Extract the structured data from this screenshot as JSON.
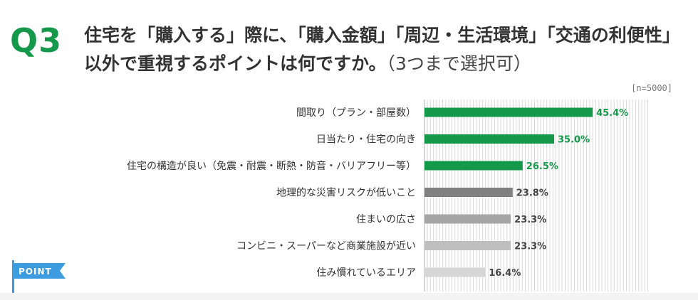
{
  "header": {
    "q_label": "Q3",
    "title_main": "住宅を「購入する」際に、「購入金額」「周辺・生活環境」「交通の利便性」以外で重視するポイントは何ですか。",
    "title_sub": "（3つまで選択可）",
    "sample_note": "[n=5000]"
  },
  "badge": {
    "label": "POINT",
    "color": "#3d9be0"
  },
  "colors": {
    "green": "#14984a",
    "gray_dark": "#808080",
    "gray_mid": "#a6a6a6",
    "gray_light": "#bfbfbf",
    "gray_lighter": "#d6d6d6",
    "grid": "#d9d9d9"
  },
  "chart_data": {
    "type": "bar",
    "orientation": "horizontal",
    "unit": "%",
    "xlim": [
      0,
      50
    ],
    "categories": [
      "間取り（プラン・部屋数）",
      "日当たり・住宅の向き",
      "住宅の構造が良い（免震・耐震・断熱・防音・バリアフリー等）",
      "地理的な災害リスクが低いこと",
      "住まいの広さ",
      "コンビニ・スーパーなど商業施設が近い",
      "住み慣れているエリア"
    ],
    "values": [
      45.4,
      35.0,
      26.5,
      23.8,
      23.3,
      23.3,
      16.4
    ],
    "value_labels": [
      "45.4%",
      "35.0%",
      "26.5%",
      "23.8%",
      "23.3%",
      "23.3%",
      "16.4%"
    ],
    "bar_colors": [
      "#14984a",
      "#14984a",
      "#14984a",
      "#808080",
      "#a6a6a6",
      "#bfbfbf",
      "#d6d6d6"
    ],
    "label_colors": [
      "#14984a",
      "#14984a",
      "#14984a",
      "#444444",
      "#444444",
      "#444444",
      "#444444"
    ],
    "grid": true
  }
}
